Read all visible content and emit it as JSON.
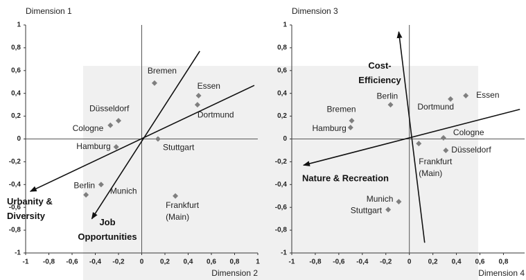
{
  "chart_data": [
    {
      "type": "scatter",
      "y_title": "Dimension 1",
      "x_title": "Dimension 2",
      "color": "#7f7f7f",
      "xlim": [
        -1,
        1
      ],
      "ylim": [
        -1,
        1
      ],
      "xticks": [
        -1,
        {
          "value": -0.8,
          "label": "-0,8"
        },
        {
          "value": -0.6,
          "label": "-0,6"
        },
        {
          "value": -0.4,
          "label": "-0,4"
        },
        {
          "value": -0.2,
          "label": "-0,2"
        },
        0,
        {
          "value": 0.2,
          "label": "0,2"
        },
        {
          "value": 0.4,
          "label": "0,4"
        },
        {
          "value": 0.6,
          "label": "0,6"
        },
        {
          "value": 0.8,
          "label": "0,8"
        },
        1
      ],
      "yticks": [
        -1,
        {
          "value": -0.8,
          "label": "-0,8"
        },
        {
          "value": -0.6,
          "label": "-0,6"
        },
        {
          "value": -0.4,
          "label": "-0,4"
        },
        {
          "value": -0.2,
          "label": "-0,2"
        },
        0,
        {
          "value": 0.2,
          "label": "0,2"
        },
        {
          "value": 0.4,
          "label": "0,4"
        },
        {
          "value": 0.6,
          "label": "0,6"
        },
        {
          "value": 0.8,
          "label": "0,8"
        },
        1
      ],
      "labels": [
        "Bremen",
        "Essen",
        "Dortmund",
        "Düsseldorf",
        "Cologne",
        "Hamburg",
        "Stuttgart",
        "Berlin",
        "Munich",
        "Frankfurt (Main)"
      ],
      "x": [
        0.11,
        0.49,
        0.48,
        -0.2,
        -0.27,
        -0.22,
        0.14,
        -0.48,
        -0.35,
        0.29
      ],
      "values": [
        0.49,
        0.38,
        0.3,
        0.16,
        0.12,
        -0.07,
        0.0,
        -0.49,
        -0.4,
        -0.5
      ],
      "arrows": [
        {
          "label": "Urbanity & Diversity",
          "x": [
            0.97,
            -0.96
          ],
          "y": [
            0.47,
            -0.46
          ]
        },
        {
          "label": "Job Opportunities",
          "x": [
            0.5,
            -0.43
          ],
          "y": [
            0.77,
            -0.7
          ]
        }
      ]
    },
    {
      "type": "scatter",
      "y_title": "Dimension 3",
      "x_title": "Dimension 4",
      "color": "#7f7f7f",
      "xlim": [
        -1,
        0.98
      ],
      "ylim": [
        -1,
        1
      ],
      "xticks": [
        -1,
        {
          "value": -0.8,
          "label": "-0,8"
        },
        {
          "value": -0.6,
          "label": "-0,6"
        },
        {
          "value": -0.4,
          "label": "-0,4"
        },
        {
          "value": -0.2,
          "label": "-0,2"
        },
        0,
        {
          "value": 0.2,
          "label": "0,2"
        },
        {
          "value": 0.4,
          "label": "0,4"
        },
        {
          "value": 0.6,
          "label": "0,6"
        },
        {
          "value": 0.8,
          "label": "0,8"
        }
      ],
      "yticks": [
        -1,
        {
          "value": -0.8,
          "label": "-0,8"
        },
        {
          "value": -0.6,
          "label": "-0,6"
        },
        {
          "value": -0.4,
          "label": "-0,4"
        },
        {
          "value": -0.2,
          "label": "-0,2"
        },
        0,
        {
          "value": 0.2,
          "label": "0,2"
        },
        {
          "value": 0.4,
          "label": "0,4"
        },
        {
          "value": 0.6,
          "label": "0,6"
        },
        {
          "value": 0.8,
          "label": "0,8"
        },
        1
      ],
      "labels": [
        "Essen",
        "Dortmund",
        "Berlin",
        "Bremen",
        "Hamburg",
        "Cologne",
        "Düsseldorf",
        "Frankfurt (Main)",
        "Munich",
        "Stuttgart"
      ],
      "x": [
        0.48,
        0.35,
        -0.16,
        -0.49,
        -0.5,
        0.29,
        0.31,
        0.08,
        -0.09,
        -0.18
      ],
      "values": [
        0.38,
        0.35,
        0.3,
        0.16,
        0.1,
        0.01,
        -0.1,
        -0.04,
        -0.55,
        -0.62
      ],
      "arrows": [
        {
          "label": "Cost-Efficiency",
          "x": [
            0.13,
            -0.09
          ],
          "y": [
            -0.91,
            0.94
          ]
        },
        {
          "label": "Nature & Recreation",
          "x": [
            0.94,
            -0.9
          ],
          "y": [
            0.26,
            -0.23
          ]
        }
      ]
    }
  ]
}
